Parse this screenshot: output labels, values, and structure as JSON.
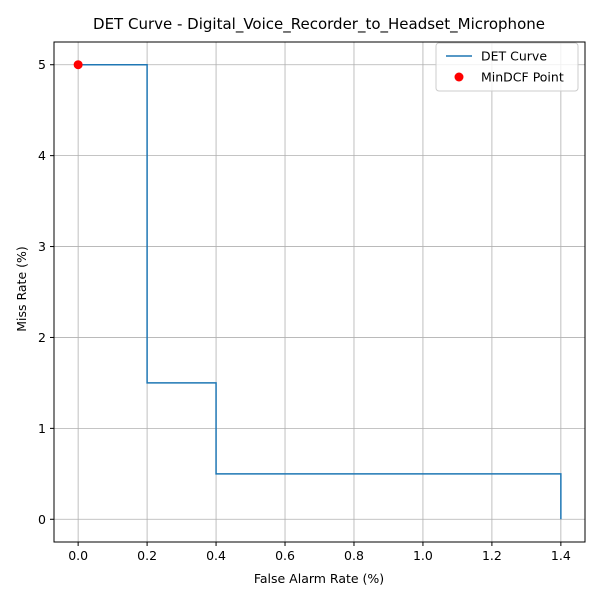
{
  "chart_data": {
    "type": "line",
    "title": "DET Curve - Digital_Voice_Recorder_to_Headset_Microphone",
    "xlabel": "False Alarm Rate (%)",
    "ylabel": "Miss Rate (%)",
    "xlim": [
      -0.07,
      1.47
    ],
    "ylim": [
      -0.25,
      5.25
    ],
    "xticks": [
      0.0,
      0.2,
      0.4,
      0.6,
      0.8,
      1.0,
      1.2,
      1.4
    ],
    "xtick_labels": [
      "0.0",
      "0.2",
      "0.4",
      "0.6",
      "0.8",
      "1.0",
      "1.2",
      "1.4"
    ],
    "yticks": [
      0,
      1,
      2,
      3,
      4,
      5
    ],
    "ytick_labels": [
      "0",
      "1",
      "2",
      "3",
      "4",
      "5"
    ],
    "grid": true,
    "legend_position": "top-right",
    "series": [
      {
        "name": "DET Curve",
        "kind": "line",
        "color": "#1f77b4",
        "points": [
          [
            0.0,
            5.0
          ],
          [
            0.2,
            5.0
          ],
          [
            0.2,
            1.5
          ],
          [
            0.4,
            1.5
          ],
          [
            0.4,
            0.5
          ],
          [
            1.4,
            0.5
          ],
          [
            1.4,
            0.0
          ]
        ]
      },
      {
        "name": "MinDCF Point",
        "kind": "scatter",
        "color": "#ff0000",
        "points": [
          [
            0.0,
            5.0
          ]
        ]
      }
    ]
  }
}
